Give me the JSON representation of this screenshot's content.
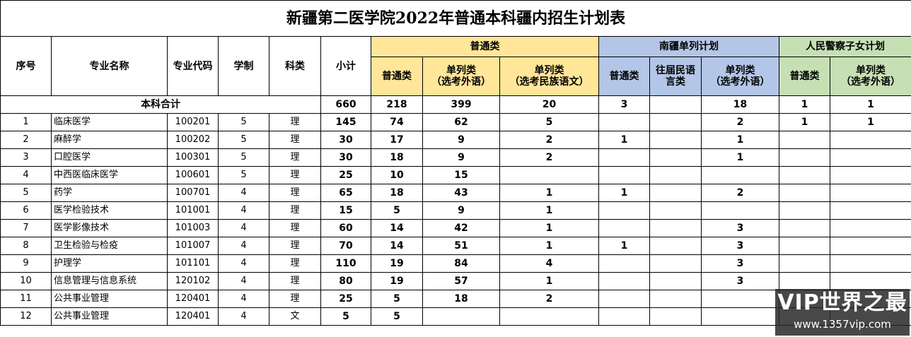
{
  "title": "新疆第二医学院2022年普通本科疆内招生计划表",
  "headers": {
    "seq": "序号",
    "major_name": "专业名称",
    "major_code": "专业代码",
    "duration": "学制",
    "category": "科类",
    "subtotal": "小计",
    "groups": {
      "putong": "普通类",
      "nanjiang": "南疆单列计划",
      "police": "人民警察子女计划"
    },
    "sub": {
      "putong_putong": "普通类",
      "putong_dl_wy": "单列类\n（选考外语）",
      "putong_dl_mz": "单列类\n（选考民族语文）",
      "nj_putong": "普通类",
      "nj_wangjie": "往届民语\n言类",
      "nj_dl_wy": "单列类\n（选考外语）",
      "police_putong": "普通类",
      "police_dl_wy": "单列类\n（选考外语）"
    }
  },
  "total": {
    "label": "本科合计",
    "subtotal": "660",
    "c1": "218",
    "c2": "399",
    "c3": "20",
    "c4": "3",
    "c5": "",
    "c6": "18",
    "c7": "1",
    "c8": "1"
  },
  "rows": [
    {
      "seq": "1",
      "name": "临床医学",
      "code": "100201",
      "years": "5",
      "kl": "理",
      "subtotal": "145",
      "c1": "74",
      "c2": "62",
      "c3": "5",
      "c4": "",
      "c5": "",
      "c6": "2",
      "c7": "1",
      "c8": "1"
    },
    {
      "seq": "2",
      "name": "麻醉学",
      "code": "100202",
      "years": "5",
      "kl": "理",
      "subtotal": "30",
      "c1": "17",
      "c2": "9",
      "c3": "2",
      "c4": "1",
      "c5": "",
      "c6": "1",
      "c7": "",
      "c8": ""
    },
    {
      "seq": "3",
      "name": "口腔医学",
      "code": "100301",
      "years": "5",
      "kl": "理",
      "subtotal": "30",
      "c1": "18",
      "c2": "9",
      "c3": "2",
      "c4": "",
      "c5": "",
      "c6": "1",
      "c7": "",
      "c8": ""
    },
    {
      "seq": "4",
      "name": "中西医临床医学",
      "code": "100601",
      "years": "5",
      "kl": "理",
      "subtotal": "25",
      "c1": "10",
      "c2": "15",
      "c3": "",
      "c4": "",
      "c5": "",
      "c6": "",
      "c7": "",
      "c8": ""
    },
    {
      "seq": "5",
      "name": "药学",
      "code": "100701",
      "years": "4",
      "kl": "理",
      "subtotal": "65",
      "c1": "18",
      "c2": "43",
      "c3": "1",
      "c4": "1",
      "c5": "",
      "c6": "2",
      "c7": "",
      "c8": ""
    },
    {
      "seq": "6",
      "name": "医学检验技术",
      "code": "101001",
      "years": "4",
      "kl": "理",
      "subtotal": "15",
      "c1": "5",
      "c2": "9",
      "c3": "1",
      "c4": "",
      "c5": "",
      "c6": "",
      "c7": "",
      "c8": ""
    },
    {
      "seq": "7",
      "name": "医学影像技术",
      "code": "101003",
      "years": "4",
      "kl": "理",
      "subtotal": "60",
      "c1": "14",
      "c2": "42",
      "c3": "1",
      "c4": "",
      "c5": "",
      "c6": "3",
      "c7": "",
      "c8": ""
    },
    {
      "seq": "8",
      "name": "卫生检验与检疫",
      "code": "101007",
      "years": "4",
      "kl": "理",
      "subtotal": "70",
      "c1": "14",
      "c2": "51",
      "c3": "1",
      "c4": "1",
      "c5": "",
      "c6": "3",
      "c7": "",
      "c8": ""
    },
    {
      "seq": "9",
      "name": "护理学",
      "code": "101101",
      "years": "4",
      "kl": "理",
      "subtotal": "110",
      "c1": "19",
      "c2": "84",
      "c3": "4",
      "c4": "",
      "c5": "",
      "c6": "3",
      "c7": "",
      "c8": ""
    },
    {
      "seq": "10",
      "name": "信息管理与信息系统",
      "code": "120102",
      "years": "4",
      "kl": "理",
      "subtotal": "80",
      "c1": "19",
      "c2": "57",
      "c3": "1",
      "c4": "",
      "c5": "",
      "c6": "3",
      "c7": "",
      "c8": ""
    },
    {
      "seq": "11",
      "name": "公共事业管理",
      "code": "120401",
      "years": "4",
      "kl": "理",
      "subtotal": "25",
      "c1": "5",
      "c2": "18",
      "c3": "2",
      "c4": "",
      "c5": "",
      "c6": "",
      "c7": "",
      "c8": ""
    },
    {
      "seq": "12",
      "name": "公共事业管理",
      "code": "120401",
      "years": "4",
      "kl": "文",
      "subtotal": "5",
      "c1": "5",
      "c2": "",
      "c3": "",
      "c4": "",
      "c5": "",
      "c6": "",
      "c7": "",
      "c8": ""
    }
  ],
  "watermark": {
    "line1": "VIP世界之最",
    "line2": "www.1357vip.com"
  }
}
